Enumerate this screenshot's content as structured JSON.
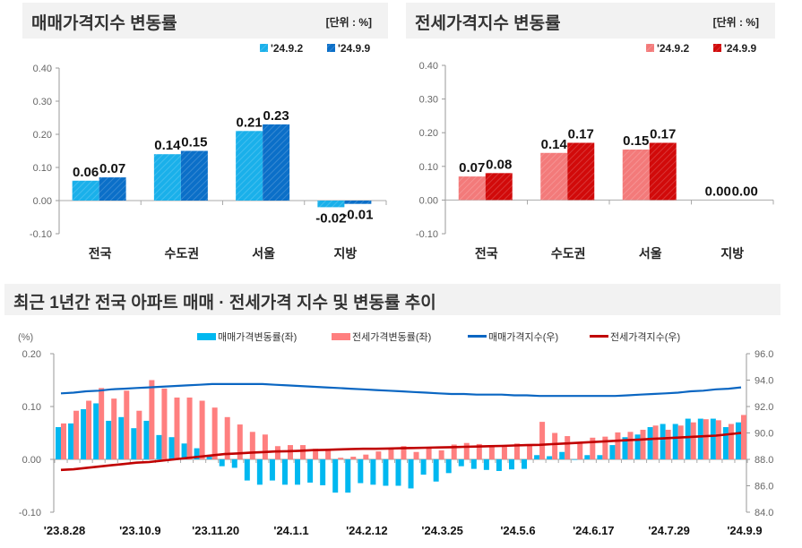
{
  "panels": {
    "sale_title": "매매가격지수 변동률",
    "jeonse_title": "전세가격지수 변동률",
    "unit": "[단위 : %]",
    "trend_title": "최근 1년간 전국 아파트 매매 · 전세가격 지수 및 변동률 추이"
  },
  "colors": {
    "sale_prev": "#1ab0ea",
    "sale_curr": "#0b6fc8",
    "jeonse_prev": "#f37a7a",
    "jeonse_curr": "#d10a0a",
    "sale_rate": "#00b8f0",
    "jeonse_rate": "#ff7f7f",
    "sale_index": "#0a66c2",
    "jeonse_index": "#c00000"
  },
  "chart_data": [
    {
      "type": "bar",
      "title": "매매가격지수 변동률",
      "unit": "[단위 : %]",
      "categories": [
        "전국",
        "수도권",
        "서울",
        "지방"
      ],
      "series": [
        {
          "name": "'24.9.2",
          "values": [
            0.06,
            0.14,
            0.21,
            -0.02
          ],
          "labels": [
            "0.06",
            "0.14",
            "0.21",
            "-0.02"
          ]
        },
        {
          "name": "'24.9.9",
          "values": [
            0.07,
            0.15,
            0.23,
            -0.01
          ],
          "labels": [
            "0.07",
            "0.15",
            "0.23",
            "-0.01"
          ]
        }
      ],
      "ylim": [
        -0.1,
        0.4
      ],
      "yticks": [
        "0.40",
        "0.30",
        "0.20",
        "0.10",
        "0.00",
        "-0.10"
      ],
      "legend": "top-right"
    },
    {
      "type": "bar",
      "title": "전세가격지수 변동률",
      "unit": "[단위 : %]",
      "categories": [
        "전국",
        "수도권",
        "서울",
        "지방"
      ],
      "series": [
        {
          "name": "'24.9.2",
          "values": [
            0.07,
            0.14,
            0.15,
            0.0
          ],
          "labels": [
            "0.07",
            "0.14",
            "0.15",
            "0.00"
          ]
        },
        {
          "name": "'24.9.9",
          "values": [
            0.08,
            0.17,
            0.17,
            0.0
          ],
          "labels": [
            "0.08",
            "0.17",
            "0.17",
            "0.00"
          ]
        }
      ],
      "ylim": [
        -0.1,
        0.4
      ],
      "yticks": [
        "0.40",
        "0.30",
        "0.20",
        "0.10",
        "0.00",
        "-0.10"
      ],
      "legend": "top-right"
    },
    {
      "type": "bar+line",
      "title": "최근 1년간 전국 아파트 매매 · 전세가격 지수 및 변동률 추이",
      "ylabel_left": "(%)",
      "ylim_left": [
        -0.1,
        0.2
      ],
      "ylim_right": [
        84.0,
        96.0
      ],
      "yticks_left": [
        "0.20",
        "0.10",
        "0.00",
        "-0.10"
      ],
      "yticks_right": [
        "96.0",
        "94.0",
        "92.0",
        "90.0",
        "88.0",
        "86.0",
        "84.0"
      ],
      "xticks": [
        "'23.8.28",
        "'23.10.9",
        "'23.11.20",
        "'24.1.1",
        "'24.2.12",
        "'24.3.25",
        "'24.5.6",
        "'24.6.17",
        "'24.7.29",
        "'24.9.9"
      ],
      "legend": "top",
      "series": [
        {
          "name": "매매가격변동률(좌)",
          "axis": "left",
          "kind": "bar",
          "values": [
            0.061,
            0.068,
            0.095,
            0.106,
            0.073,
            0.08,
            0.059,
            0.073,
            0.046,
            0.042,
            0.03,
            0.021,
            0.005,
            -0.013,
            -0.016,
            -0.04,
            -0.048,
            -0.04,
            -0.048,
            -0.048,
            -0.044,
            -0.049,
            -0.063,
            -0.063,
            -0.045,
            -0.048,
            -0.05,
            -0.05,
            -0.055,
            -0.029,
            -0.042,
            -0.026,
            -0.013,
            -0.018,
            -0.02,
            -0.022,
            -0.019,
            -0.018,
            0.008,
            0.006,
            0.014,
            -0.001,
            0.008,
            0.008,
            0.027,
            0.042,
            0.047,
            0.061,
            0.067,
            0.067,
            0.077,
            0.077,
            0.077,
            0.061,
            0.07
          ]
        },
        {
          "name": "전세가격변동률(좌)",
          "axis": "left",
          "kind": "bar",
          "values": [
            0.068,
            0.092,
            0.111,
            0.135,
            0.115,
            0.13,
            0.092,
            0.15,
            0.134,
            0.117,
            0.117,
            0.111,
            0.098,
            0.08,
            0.066,
            0.052,
            0.047,
            0.025,
            0.027,
            0.027,
            0.02,
            0.02,
            0.003,
            0.005,
            0.009,
            0.015,
            0.021,
            0.025,
            0.014,
            0.021,
            0.017,
            0.028,
            0.031,
            0.029,
            0.027,
            0.025,
            0.03,
            0.026,
            0.071,
            0.05,
            0.044,
            0.033,
            0.041,
            0.043,
            0.051,
            0.052,
            0.056,
            0.064,
            0.056,
            0.064,
            0.07,
            0.076,
            0.074,
            0.067,
            0.084
          ]
        },
        {
          "name": "매매가격지수(우)",
          "axis": "right",
          "kind": "line",
          "values": [
            93.0,
            93.05,
            93.15,
            93.2,
            93.3,
            93.35,
            93.4,
            93.45,
            93.5,
            93.55,
            93.6,
            93.65,
            93.7,
            93.7,
            93.7,
            93.7,
            93.7,
            93.65,
            93.6,
            93.55,
            93.5,
            93.45,
            93.4,
            93.35,
            93.3,
            93.25,
            93.2,
            93.15,
            93.1,
            93.05,
            93.0,
            92.95,
            92.95,
            92.9,
            92.9,
            92.9,
            92.85,
            92.85,
            92.8,
            92.8,
            92.8,
            92.8,
            92.8,
            92.8,
            92.8,
            92.85,
            92.9,
            92.95,
            93.0,
            93.05,
            93.15,
            93.2,
            93.3,
            93.35,
            93.45
          ]
        },
        {
          "name": "전세가격지수(우)",
          "axis": "right",
          "kind": "line",
          "values": [
            87.2,
            87.25,
            87.35,
            87.45,
            87.55,
            87.65,
            87.75,
            87.8,
            87.9,
            88.0,
            88.1,
            88.2,
            88.3,
            88.4,
            88.45,
            88.5,
            88.55,
            88.6,
            88.62,
            88.65,
            88.7,
            88.72,
            88.75,
            88.78,
            88.8,
            88.8,
            88.82,
            88.84,
            88.86,
            88.88,
            88.9,
            88.92,
            88.95,
            88.97,
            89.0,
            89.02,
            89.05,
            89.08,
            89.1,
            89.15,
            89.2,
            89.25,
            89.3,
            89.35,
            89.4,
            89.45,
            89.5,
            89.55,
            89.6,
            89.65,
            89.7,
            89.75,
            89.8,
            89.9,
            90.0
          ]
        }
      ]
    }
  ]
}
